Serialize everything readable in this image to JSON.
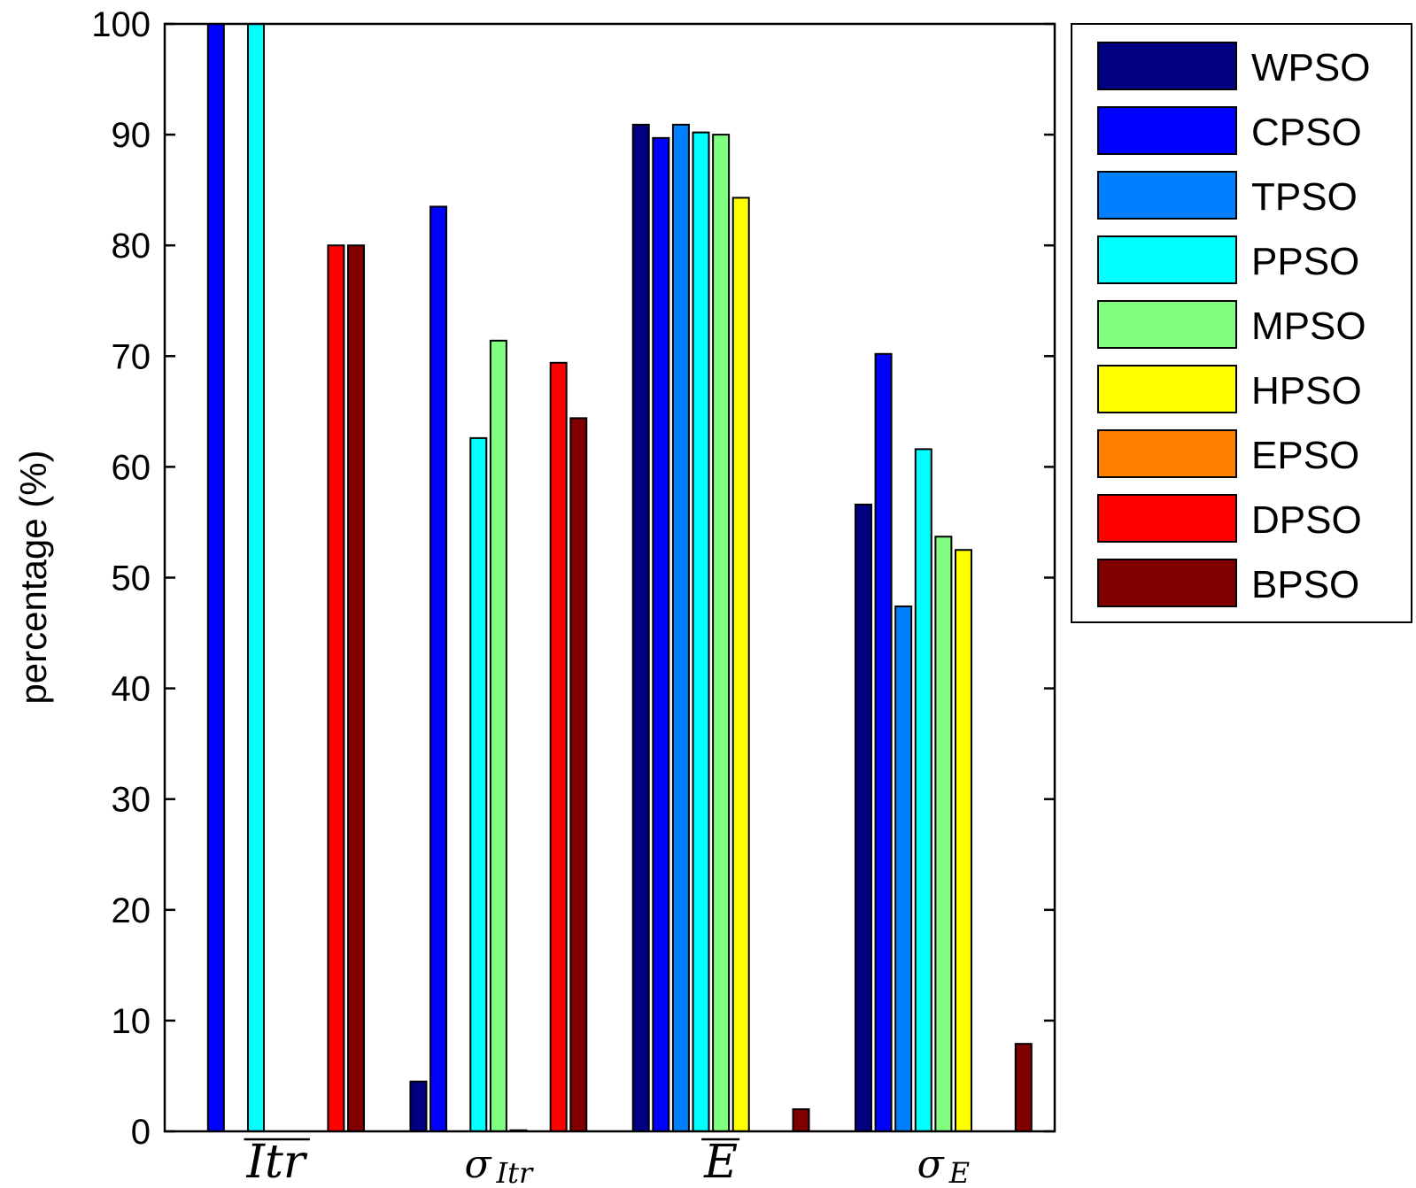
{
  "chart_data": {
    "type": "bar",
    "ylabel": "percentage (%)",
    "ylim": [
      0,
      100
    ],
    "yticks": [
      "0",
      "10",
      "20",
      "30",
      "40",
      "50",
      "60",
      "70",
      "80",
      "90",
      "100"
    ],
    "categories": [
      {
        "base": "Itr",
        "sub": "",
        "overline": true
      },
      {
        "base": "σ",
        "sub": "Itr",
        "overline": false
      },
      {
        "base": "E",
        "sub": "",
        "overline": true
      },
      {
        "base": "σ",
        "sub": "E",
        "overline": false
      }
    ],
    "legend_position": "outside-right",
    "series": [
      {
        "name": "WPSO",
        "color": "#000080",
        "values": [
          0,
          4.5,
          90.9,
          56.6
        ]
      },
      {
        "name": "CPSO",
        "color": "#0000FF",
        "values": [
          100,
          83.5,
          89.7,
          70.2
        ]
      },
      {
        "name": "TPSO",
        "color": "#0080FF",
        "values": [
          0,
          0,
          90.9,
          47.4
        ]
      },
      {
        "name": "PPSO",
        "color": "#00FFFF",
        "values": [
          100,
          62.6,
          90.2,
          61.6
        ]
      },
      {
        "name": "MPSO",
        "color": "#80FF80",
        "values": [
          0,
          71.4,
          90.0,
          53.7
        ]
      },
      {
        "name": "HPSO",
        "color": "#FFFF00",
        "values": [
          0,
          0.1,
          84.3,
          52.5
        ]
      },
      {
        "name": "EPSO",
        "color": "#FF8000",
        "values": [
          0,
          0,
          0,
          0
        ]
      },
      {
        "name": "DPSO",
        "color": "#FF0000",
        "values": [
          80,
          69.4,
          0,
          0
        ]
      },
      {
        "name": "BPSO",
        "color": "#800000",
        "values": [
          80,
          64.4,
          2.0,
          7.9
        ]
      }
    ]
  }
}
